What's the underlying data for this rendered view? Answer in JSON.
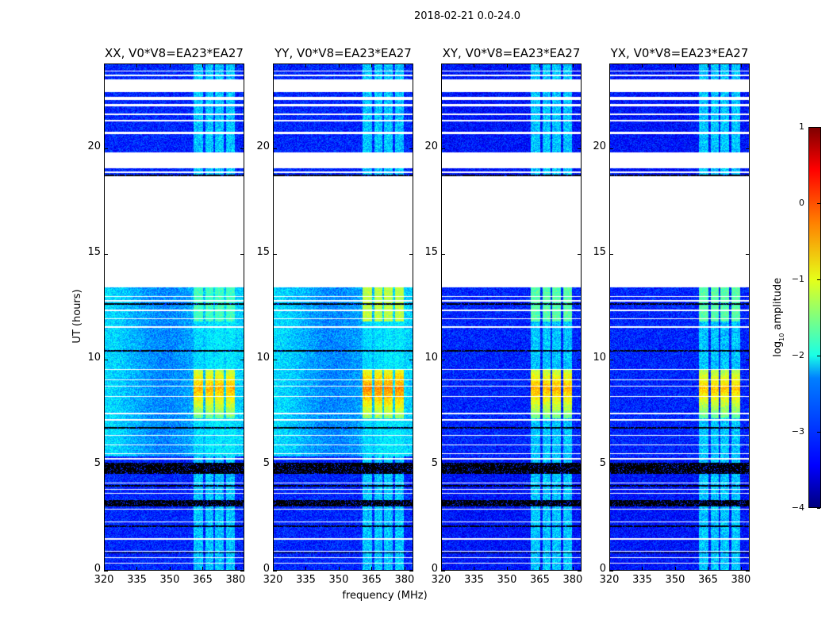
{
  "chart_data": {
    "type": "heatmap",
    "title": "2018-02-21 0.0-24.0",
    "xlabel": "frequency (MHz)",
    "ylabel": "UT (hours)",
    "xlim": [
      320,
      384
    ],
    "ylim": [
      0,
      24
    ],
    "xticks": [
      "320",
      "335",
      "350",
      "365",
      "380"
    ],
    "xtick_values": [
      320,
      335,
      350,
      365,
      380
    ],
    "yticks": [
      "0",
      "5",
      "10",
      "15",
      "20"
    ],
    "ytick_values": [
      0,
      5,
      10,
      15,
      20
    ],
    "colorbar": {
      "label_main": "log",
      "label_sub": "10",
      "label_rest": " amplitude",
      "range": [
        -4,
        1
      ],
      "ticks": [
        "1",
        "0",
        "−1",
        "−2",
        "−3",
        "−4"
      ],
      "tick_values": [
        1,
        0,
        -1,
        -2,
        -3,
        -4
      ],
      "colormap": "jet"
    },
    "panels": [
      {
        "title": "XX, V0*V8=EA23*EA27",
        "base": {
          "night": -3.2,
          "day": -2.5
        },
        "rfi_peak": -0.2,
        "rfi_late": -1.8
      },
      {
        "title": "YY, V0*V8=EA23*EA27",
        "base": {
          "night": -3.2,
          "day": -2.5
        },
        "rfi_peak": 0.0,
        "rfi_late": -1.2
      },
      {
        "title": "XY, V0*V8=EA23*EA27",
        "base": {
          "night": -3.3,
          "day": -3.2
        },
        "rfi_peak": -0.2,
        "rfi_late": -1.7
      },
      {
        "title": "YX, V0*V8=EA23*EA27",
        "base": {
          "night": -3.3,
          "day": -3.2
        },
        "rfi_peak": -0.3,
        "rfi_late": -1.7
      }
    ],
    "day_hours": [
      5.4,
      13.4
    ],
    "flagged_hours": [
      [
        13.4,
        18.7
      ],
      [
        18.85,
        18.9
      ],
      [
        19.05,
        19.8
      ],
      [
        20.7,
        20.8
      ],
      [
        21.3,
        21.35
      ],
      [
        21.6,
        21.65
      ],
      [
        22.0,
        22.1
      ],
      [
        22.3,
        22.45
      ],
      [
        22.7,
        23.3
      ],
      [
        23.45,
        23.5
      ],
      [
        23.65,
        23.7
      ],
      [
        12.95,
        13.0
      ],
      [
        12.75,
        12.8
      ],
      [
        12.3,
        12.35
      ],
      [
        11.9,
        11.95
      ],
      [
        11.5,
        11.55
      ],
      [
        9.5,
        9.55
      ],
      [
        9.0,
        9.05
      ],
      [
        8.7,
        8.75
      ],
      [
        8.2,
        8.25
      ],
      [
        7.4,
        7.45
      ],
      [
        7.1,
        7.15
      ],
      [
        6.35,
        6.4
      ],
      [
        5.9,
        5.95
      ],
      [
        5.5,
        5.55
      ],
      [
        5.25,
        5.3
      ],
      [
        4.1,
        4.15
      ],
      [
        3.8,
        3.85
      ],
      [
        3.6,
        3.65
      ],
      [
        2.85,
        2.9
      ],
      [
        2.25,
        2.3
      ],
      [
        1.45,
        1.5
      ],
      [
        0.85,
        0.9
      ],
      [
        0.55,
        0.6
      ],
      [
        0.3,
        0.33
      ]
    ],
    "black_hours": [
      [
        10.35,
        10.42
      ],
      [
        6.72,
        6.77
      ],
      [
        2.05,
        2.1
      ],
      [
        3.0,
        3.3
      ],
      [
        4.55,
        5.1
      ],
      [
        3.95,
        4.05
      ],
      [
        0.78,
        0.82
      ],
      [
        12.6,
        12.65
      ],
      [
        18.7,
        18.75
      ]
    ],
    "rfi_channels_mhz": [
      [
        361,
        365.5
      ],
      [
        366.5,
        370
      ],
      [
        371,
        375
      ],
      [
        376,
        380
      ]
    ],
    "rfi_peak_hours": [
      7.2,
      9.5
    ]
  }
}
